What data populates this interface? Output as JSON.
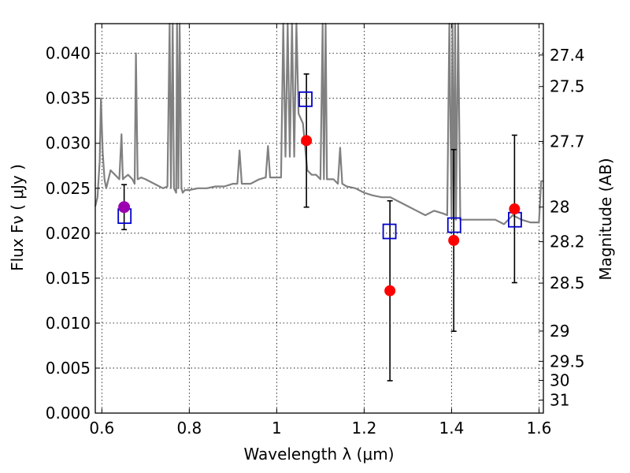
{
  "chart_data": {
    "type": "scatter",
    "xlabel": "Wavelength  λ (μm)",
    "ylabel": "Flux  Fν  ( μJy )",
    "ylabel_right": "Magnitude (AB)",
    "xlim": [
      0.585,
      1.61
    ],
    "ylim": [
      0.0,
      0.0433
    ],
    "grid": true,
    "x_ticks": [
      0.6,
      0.8,
      1.0,
      1.2,
      1.4,
      1.6
    ],
    "x_tick_labels": [
      "0.6",
      "0.8",
      "1",
      "1.2",
      "1.4",
      "1.6"
    ],
    "y_ticks": [
      0.0,
      0.005,
      0.01,
      0.015,
      0.02,
      0.025,
      0.03,
      0.035,
      0.04
    ],
    "y_tick_labels": [
      "0.000",
      "0.005",
      "0.010",
      "0.015",
      "0.020",
      "0.025",
      "0.030",
      "0.035",
      "0.040"
    ],
    "mag_ticks": [
      27.4,
      27.5,
      27.7,
      28,
      28.2,
      28.5,
      29,
      29.5,
      30,
      31
    ],
    "mag_tick_labels": [
      "27.4",
      "27.5",
      "27.7",
      "28",
      "28.2",
      "28.5",
      "29",
      "29.5",
      "30",
      "31"
    ],
    "model_spectrum": {
      "color": "#808080",
      "x": [
        0.585,
        0.59,
        0.595,
        0.598,
        0.602,
        0.606,
        0.61,
        0.615,
        0.62,
        0.63,
        0.64,
        0.645,
        0.648,
        0.652,
        0.66,
        0.67,
        0.675,
        0.678,
        0.682,
        0.69,
        0.7,
        0.72,
        0.74,
        0.75,
        0.755,
        0.758,
        0.762,
        0.765,
        0.77,
        0.772,
        0.775,
        0.778,
        0.782,
        0.785,
        0.79,
        0.8,
        0.82,
        0.84,
        0.86,
        0.88,
        0.9,
        0.91,
        0.915,
        0.92,
        0.94,
        0.96,
        0.975,
        0.98,
        0.985,
        0.99,
        1.0,
        1.01,
        1.015,
        1.02,
        1.025,
        1.03,
        1.035,
        1.04,
        1.045,
        1.05,
        1.06,
        1.07,
        1.08,
        1.09,
        1.1,
        1.105,
        1.108,
        1.112,
        1.115,
        1.12,
        1.13,
        1.14,
        1.145,
        1.15,
        1.16,
        1.18,
        1.2,
        1.22,
        1.24,
        1.26,
        1.28,
        1.3,
        1.32,
        1.34,
        1.36,
        1.38,
        1.39,
        1.395,
        1.4,
        1.402,
        1.405,
        1.408,
        1.41,
        1.415,
        1.42,
        1.44,
        1.46,
        1.48,
        1.5,
        1.52,
        1.54,
        1.56,
        1.58,
        1.6,
        1.605,
        1.61
      ],
      "y": [
        0.023,
        0.024,
        0.028,
        0.035,
        0.029,
        0.026,
        0.025,
        0.026,
        0.027,
        0.0265,
        0.026,
        0.031,
        0.026,
        0.0262,
        0.0265,
        0.026,
        0.0255,
        0.04,
        0.026,
        0.0262,
        0.026,
        0.0255,
        0.025,
        0.0252,
        0.0433,
        0.025,
        0.0433,
        0.025,
        0.0245,
        0.0433,
        0.025,
        0.0433,
        0.025,
        0.0245,
        0.0248,
        0.0248,
        0.025,
        0.025,
        0.0252,
        0.0252,
        0.0255,
        0.0255,
        0.0292,
        0.0255,
        0.0255,
        0.026,
        0.0262,
        0.0297,
        0.0262,
        0.0262,
        0.0262,
        0.0262,
        0.0433,
        0.0285,
        0.0433,
        0.0285,
        0.0433,
        0.0285,
        0.0433,
        0.0333,
        0.0322,
        0.027,
        0.0265,
        0.0265,
        0.026,
        0.0433,
        0.026,
        0.0433,
        0.026,
        0.026,
        0.026,
        0.0255,
        0.0295,
        0.0255,
        0.0252,
        0.025,
        0.0245,
        0.0242,
        0.024,
        0.024,
        0.0235,
        0.023,
        0.0225,
        0.022,
        0.0225,
        0.0222,
        0.022,
        0.0433,
        0.0218,
        0.0433,
        0.0215,
        0.0433,
        0.0215,
        0.0433,
        0.0215,
        0.0215,
        0.0215,
        0.0215,
        0.0215,
        0.021,
        0.022,
        0.0215,
        0.0212,
        0.0212,
        0.0258,
        0.0258
      ]
    },
    "model_photometry": {
      "name": "",
      "marker": "open-square",
      "color": "#0000cc",
      "x": [
        0.652,
        1.066,
        1.258,
        1.406,
        1.545
      ],
      "y": [
        0.0219,
        0.0349,
        0.0202,
        0.0209,
        0.0215
      ]
    },
    "observed": {
      "name": "",
      "marker": "filled-circle",
      "color": "#ff0000",
      "x": [
        1.068,
        1.259,
        1.405,
        1.544
      ],
      "y": [
        0.0303,
        0.0136,
        0.0192,
        0.0227
      ],
      "err": [
        0.0074,
        0.01,
        0.0101,
        0.0082
      ]
    },
    "optical_point": {
      "name": "",
      "marker": "filled-circle",
      "color": "#9a00b0",
      "x": [
        0.651
      ],
      "y": [
        0.0229
      ],
      "err": [
        0.0025
      ]
    }
  }
}
